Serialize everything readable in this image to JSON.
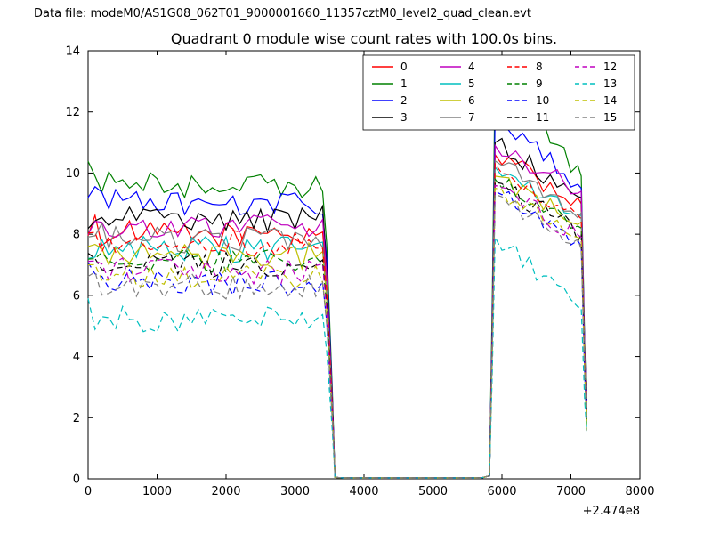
{
  "header": {
    "data_file_label": "Data file: modeM0/AS1G08_062T01_9000001660_11357cztM0_level2_quad_clean.evt"
  },
  "chart_data": {
    "type": "line",
    "title": "Quadrant 0 module wise count rates with 100.0s bins.",
    "xlabel": "",
    "ylabel": "",
    "xlim": [
      0,
      8000
    ],
    "ylim": [
      0,
      14
    ],
    "x_ticks": [
      0,
      1000,
      2000,
      3000,
      4000,
      5000,
      6000,
      7000,
      8000
    ],
    "y_ticks": [
      0,
      2,
      4,
      6,
      8,
      10,
      12,
      14
    ],
    "x_offset_label": "+2.474e8",
    "grid": false,
    "bin_seconds": 100,
    "legend": {
      "position": "upper right",
      "columns": 4,
      "labels": [
        "0",
        "1",
        "2",
        "3",
        "4",
        "5",
        "6",
        "7",
        "8",
        "9",
        "10",
        "11",
        "12",
        "13",
        "14",
        "15"
      ]
    },
    "segments": {
      "plateau_range": [
        0,
        3450
      ],
      "gap_range": [
        3550,
        5800
      ],
      "burst_range": [
        5900,
        7200
      ],
      "end_drop_value": 1.7
    },
    "series": [
      {
        "name": "0",
        "color": "#ff0000",
        "dashed": false,
        "plateau": 8.0,
        "peak": 10.6,
        "tail": 9.0
      },
      {
        "name": "1",
        "color": "#008000",
        "dashed": false,
        "plateau": 9.6,
        "peak": 13.3,
        "tail": 9.9
      },
      {
        "name": "2",
        "color": "#0000ff",
        "dashed": false,
        "plateau": 9.0,
        "peak": 11.9,
        "tail": 9.5
      },
      {
        "name": "3",
        "color": "#000000",
        "dashed": false,
        "plateau": 8.5,
        "peak": 11.0,
        "tail": 9.2
      },
      {
        "name": "4",
        "color": "#bf00bf",
        "dashed": false,
        "plateau": 8.3,
        "peak": 10.9,
        "tail": 9.4
      },
      {
        "name": "5",
        "color": "#00bfbf",
        "dashed": false,
        "plateau": 7.5,
        "peak": 10.2,
        "tail": 8.6
      },
      {
        "name": "6",
        "color": "#bfbf00",
        "dashed": false,
        "plateau": 7.3,
        "peak": 9.9,
        "tail": 8.4
      },
      {
        "name": "7",
        "color": "#808080",
        "dashed": false,
        "plateau": 7.8,
        "peak": 10.4,
        "tail": 8.7
      },
      {
        "name": "8",
        "color": "#ff0000",
        "dashed": true,
        "plateau": 7.7,
        "peak": 10.3,
        "tail": 8.5
      },
      {
        "name": "9",
        "color": "#008000",
        "dashed": true,
        "plateau": 7.1,
        "peak": 9.8,
        "tail": 8.2
      },
      {
        "name": "10",
        "color": "#0000ff",
        "dashed": true,
        "plateau": 6.4,
        "peak": 9.4,
        "tail": 7.6
      },
      {
        "name": "11",
        "color": "#000000",
        "dashed": true,
        "plateau": 7.0,
        "peak": 9.7,
        "tail": 8.0
      },
      {
        "name": "12",
        "color": "#bf00bf",
        "dashed": true,
        "plateau": 6.8,
        "peak": 9.6,
        "tail": 7.9
      },
      {
        "name": "13",
        "color": "#00bfbf",
        "dashed": true,
        "plateau": 5.2,
        "peak": 7.9,
        "tail": 5.6
      },
      {
        "name": "14",
        "color": "#bfbf00",
        "dashed": true,
        "plateau": 6.6,
        "peak": 9.5,
        "tail": 7.8
      },
      {
        "name": "15",
        "color": "#808080",
        "dashed": true,
        "plateau": 6.3,
        "peak": 9.3,
        "tail": 7.5
      }
    ]
  }
}
